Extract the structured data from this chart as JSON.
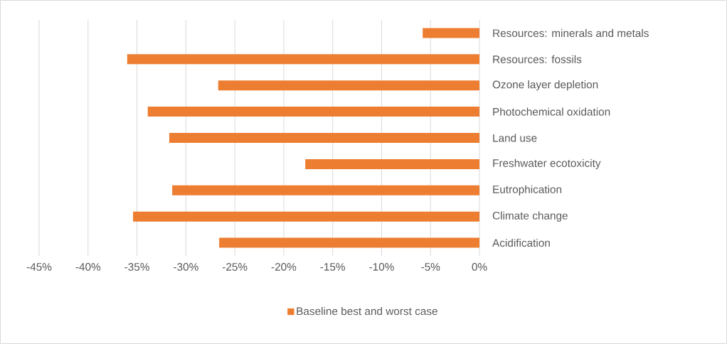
{
  "chart_data": {
    "type": "bar",
    "orientation": "horizontal",
    "categories": [
      "Resources: minerals and metals",
      "Resources: fossils",
      "Ozone layer depletion",
      "Photochemical oxidation",
      "Land use",
      "Freshwater ecotoxicity",
      "Eutrophication",
      "Climate change",
      "Acidification"
    ],
    "series": [
      {
        "name": "Baseline best and worst case",
        "color": "#ed7d31",
        "values": [
          -5.8,
          -36.0,
          -26.7,
          -33.9,
          -31.7,
          -17.8,
          -31.4,
          -35.4,
          -26.6
        ]
      }
    ],
    "xlim": [
      -45,
      0
    ],
    "xticks": [
      {
        "value": -45,
        "label": "-45%"
      },
      {
        "value": -40,
        "label": "-40%"
      },
      {
        "value": -35,
        "label": "-35%"
      },
      {
        "value": -30,
        "label": "-30%"
      },
      {
        "value": -25,
        "label": "-25%"
      },
      {
        "value": -20,
        "label": "-20%"
      },
      {
        "value": -15,
        "label": "-15%"
      },
      {
        "value": -10,
        "label": "-10%"
      },
      {
        "value": -5,
        "label": "-5%"
      },
      {
        "value": 0,
        "label": "0%"
      }
    ],
    "grid": "x",
    "legend": "bottom"
  }
}
